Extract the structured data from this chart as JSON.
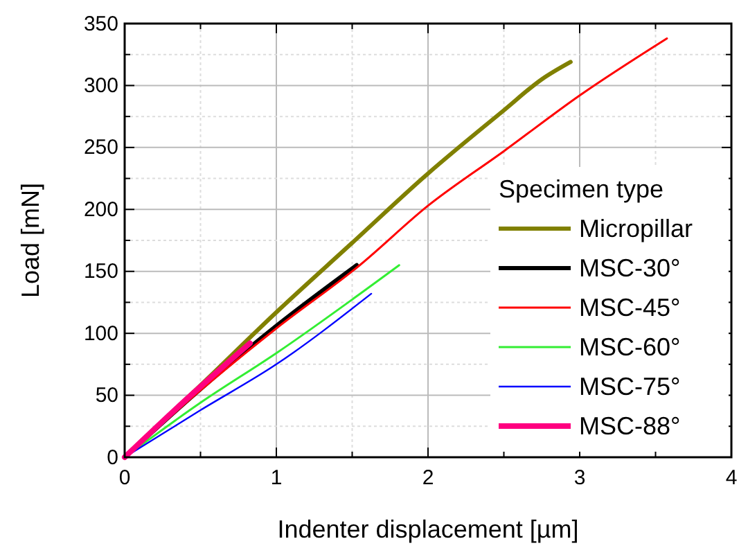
{
  "chart_data": {
    "type": "line",
    "xlabel": "Indenter displacement [µm]",
    "ylabel": "Load [mN]",
    "legend_title": "Specimen type",
    "legend": "bottom right",
    "grid": true,
    "line_style": "solid",
    "xlim": [
      0,
      4
    ],
    "ylim": [
      0,
      350
    ],
    "xticks": [
      0,
      {
        "value": 0.5,
        "label": null
      },
      1,
      {
        "value": 1.5,
        "label": null
      },
      2,
      {
        "value": 2.5,
        "label": null
      },
      3,
      {
        "value": 3.5,
        "label": null
      },
      4
    ],
    "yticks": [
      0,
      {
        "value": 25,
        "label": null
      },
      50,
      {
        "value": 75,
        "label": null
      },
      100,
      {
        "value": 125,
        "label": null
      },
      150,
      {
        "value": 175,
        "label": null
      },
      200,
      {
        "value": 225,
        "label": null
      },
      250,
      {
        "value": 275,
        "label": null
      },
      300,
      {
        "value": 325,
        "label": null
      },
      350
    ],
    "series": [
      {
        "name": "Micropillar",
        "color": "#808000",
        "x": [
          0,
          0.5,
          1,
          1.5,
          2,
          2.5,
          2.75,
          2.94
        ],
        "values": [
          0,
          58,
          117,
          173,
          229,
          280,
          305,
          319
        ]
      },
      {
        "name": "MSC-30°",
        "color": "#000000",
        "x": [
          0,
          0.5,
          1,
          1.53
        ],
        "values": [
          0,
          55,
          106,
          155
        ]
      },
      {
        "name": "MSC-45°",
        "color": "#ff0000",
        "x": [
          0,
          0.5,
          1,
          1.55,
          2,
          2.5,
          3,
          3.575
        ],
        "values": [
          0,
          54,
          104,
          155,
          203,
          247,
          292,
          338
        ]
      },
      {
        "name": "MSC-60°",
        "color": "#33ee33",
        "x": [
          0,
          0.5,
          1,
          1.81
        ],
        "values": [
          0,
          44,
          84,
          155
        ]
      },
      {
        "name": "MSC-75°",
        "color": "#0000ff",
        "x": [
          0,
          0.5,
          1,
          1.626
        ],
        "values": [
          0,
          38,
          75,
          132
        ]
      },
      {
        "name": "MSC-88°",
        "color": "#ff0080",
        "x": [
          0,
          0.4,
          0.826
        ],
        "values": [
          0,
          46,
          92
        ]
      }
    ]
  }
}
